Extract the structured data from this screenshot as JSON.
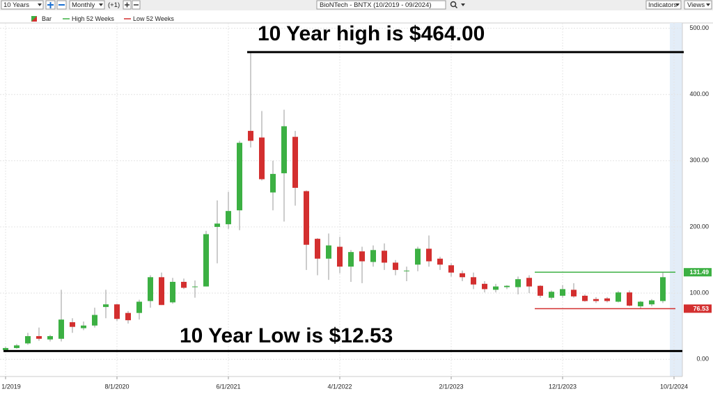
{
  "toolbar": {
    "period": "10 Years",
    "interval": "Monthly",
    "offset": "(+1)",
    "indicators": "Indicators",
    "views": "Views"
  },
  "chart_data": {
    "type": "candlestick",
    "title": "BioNTech - BNTX (10/2019 - 09/2024)",
    "x": [
      "10/1/2019",
      "11/1/2019",
      "12/1/2019",
      "1/1/2020",
      "2/1/2020",
      "3/1/2020",
      "4/1/2020",
      "5/1/2020",
      "6/1/2020",
      "7/1/2020",
      "8/1/2020",
      "9/1/2020",
      "10/1/2020",
      "11/1/2020",
      "12/1/2020",
      "1/1/2021",
      "2/1/2021",
      "3/1/2021",
      "4/1/2021",
      "5/1/2021",
      "6/1/2021",
      "7/1/2021",
      "8/1/2021",
      "9/1/2021",
      "10/1/2021",
      "11/1/2021",
      "12/1/2021",
      "1/1/2022",
      "2/1/2022",
      "3/1/2022",
      "4/1/2022",
      "5/1/2022",
      "6/1/2022",
      "7/1/2022",
      "8/1/2022",
      "9/1/2022",
      "10/1/2022",
      "11/1/2022",
      "12/1/2022",
      "1/1/2023",
      "2/1/2023",
      "3/1/2023",
      "4/1/2023",
      "5/1/2023",
      "6/1/2023",
      "7/1/2023",
      "8/1/2023",
      "9/1/2023",
      "10/1/2023",
      "11/1/2023",
      "12/1/2023",
      "1/1/2024",
      "2/1/2024",
      "3/1/2024",
      "4/1/2024",
      "5/1/2024",
      "6/1/2024",
      "7/1/2024",
      "8/1/2024",
      "9/1/2024"
    ],
    "open": [
      14,
      17,
      24,
      35,
      30,
      31,
      56,
      47,
      51,
      79,
      83,
      70,
      70,
      88,
      124,
      86,
      117,
      109,
      110,
      200,
      204,
      225,
      345,
      335,
      252,
      281,
      336,
      254,
      182,
      152,
      170,
      140,
      163,
      147,
      164,
      146,
      133,
      143,
      167,
      152,
      142,
      130,
      124,
      114,
      105,
      109,
      109,
      123,
      111,
      93,
      96,
      105,
      96,
      91,
      92,
      87,
      101,
      80,
      83,
      88
    ],
    "high": [
      19,
      23,
      40,
      48,
      37,
      105,
      62,
      57,
      78,
      105,
      84,
      73,
      90,
      127,
      131,
      123,
      122,
      119,
      194,
      240,
      253,
      330,
      464,
      375,
      300,
      377,
      345,
      255,
      183,
      190,
      185,
      165,
      170,
      172,
      175,
      150,
      140,
      170,
      187,
      155,
      145,
      134,
      131,
      118,
      114,
      112,
      125,
      127,
      112,
      104,
      112,
      115,
      98,
      94,
      94,
      103,
      104,
      88,
      91,
      131.49
    ],
    "low": [
      12.53,
      16,
      22,
      28,
      27,
      27,
      40,
      44,
      48,
      62,
      58,
      54,
      60,
      78,
      82,
      84,
      106,
      93,
      110,
      145,
      197,
      195,
      320,
      270,
      225,
      208,
      232,
      135,
      127,
      120,
      130,
      117,
      115,
      140,
      135,
      127,
      118,
      133,
      140,
      135,
      125,
      118,
      106,
      101,
      101,
      106,
      98,
      100,
      93,
      90,
      93,
      93,
      87,
      85,
      86,
      86,
      80,
      76.53,
      80,
      85
    ],
    "close": [
      17,
      21,
      35,
      31,
      35,
      60,
      49,
      51,
      67,
      83,
      61,
      59,
      87,
      124,
      82,
      117,
      108,
      110,
      189,
      205,
      224,
      327,
      330,
      272,
      280,
      352,
      259,
      173,
      152,
      172,
      140,
      162,
      148,
      165,
      146,
      135,
      134,
      167,
      148,
      143,
      131,
      124,
      113,
      106,
      110,
      111,
      121,
      110,
      96,
      102,
      106,
      95,
      88,
      88,
      88,
      101,
      81,
      87,
      89,
      124
    ],
    "up_color": "#3cb043",
    "down_color": "#d32f2f",
    "ylim": [
      -26,
      508
    ],
    "yticks": [
      {
        "value": 0,
        "label": "0.00"
      },
      {
        "value": 100,
        "label": "100.00"
      },
      {
        "value": 200,
        "label": "200.00"
      },
      {
        "value": 300,
        "label": "300.00"
      },
      {
        "value": 400,
        "label": "400.00"
      },
      {
        "value": 500,
        "label": "500.00"
      }
    ],
    "xticks": [
      {
        "value": "10/1/2019",
        "label": "1/2019"
      },
      "8/1/2020",
      "6/1/2021",
      "4/1/2022",
      "2/1/2023",
      "12/1/2023",
      "10/1/2024"
    ],
    "grid": true,
    "legend": [
      {
        "name": "Bar"
      },
      {
        "name": "High 52 Weeks",
        "color": "#3cb043",
        "value": 131.49
      },
      {
        "name": "Low 52 Weeks",
        "color": "#d32f2f",
        "value": 76.53
      }
    ],
    "annotations": [
      {
        "text": "10 Year high is $464.00",
        "value": 464
      },
      {
        "text": "10 Year Low is $12.53",
        "value": 12.53
      }
    ]
  }
}
